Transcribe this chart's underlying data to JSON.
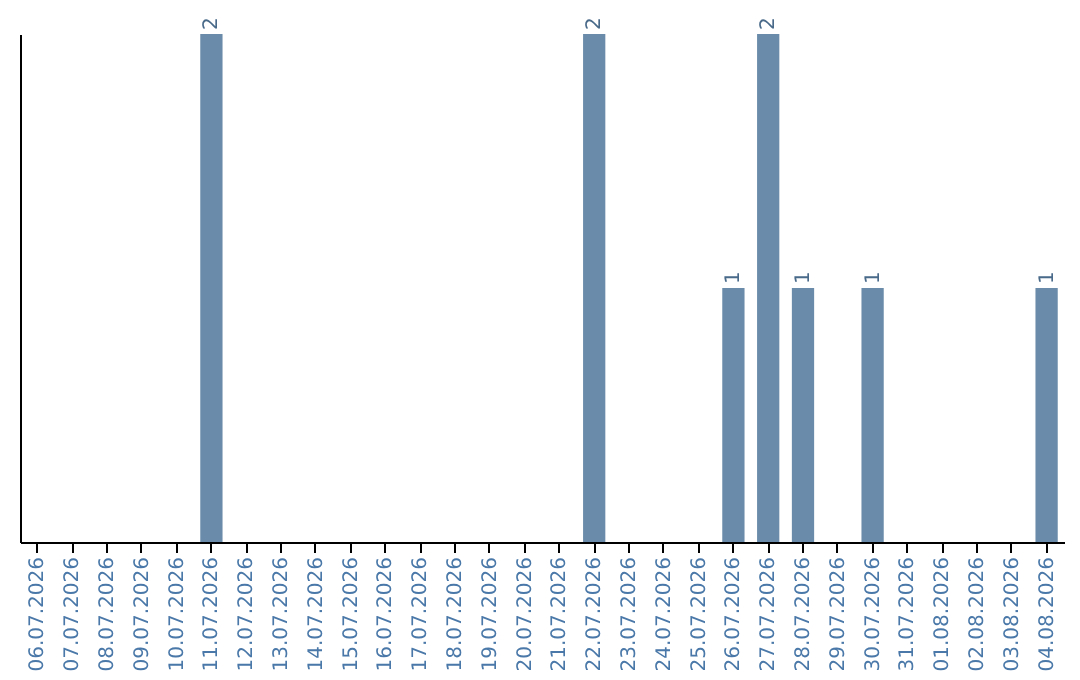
{
  "chart_data": {
    "type": "bar",
    "categories": [
      "06.07.2026",
      "07.07.2026",
      "08.07.2026",
      "09.07.2026",
      "10.07.2026",
      "11.07.2026",
      "12.07.2026",
      "13.07.2026",
      "14.07.2026",
      "15.07.2026",
      "16.07.2026",
      "17.07.2026",
      "18.07.2026",
      "19.07.2026",
      "20.07.2026",
      "21.07.2026",
      "22.07.2026",
      "23.07.2026",
      "24.07.2026",
      "25.07.2026",
      "26.07.2026",
      "27.07.2026",
      "28.07.2026",
      "29.07.2026",
      "30.07.2026",
      "31.07.2026",
      "01.08.2026",
      "02.08.2026",
      "03.08.2026",
      "04.08.2026"
    ],
    "values": [
      0,
      0,
      0,
      0,
      0,
      2,
      0,
      0,
      0,
      0,
      0,
      0,
      0,
      0,
      0,
      0,
      2,
      0,
      0,
      0,
      1,
      2,
      1,
      0,
      1,
      0,
      0,
      0,
      0,
      1
    ],
    "value_labels": [
      null,
      null,
      null,
      null,
      null,
      "2",
      null,
      null,
      null,
      null,
      null,
      null,
      null,
      null,
      null,
      null,
      "2",
      null,
      null,
      null,
      "1",
      "2",
      "1",
      null,
      "1",
      null,
      null,
      null,
      null,
      "1"
    ],
    "color": "#6a8caa",
    "ylim": [
      0,
      2
    ],
    "grid": false,
    "tick_labels": "x"
  }
}
